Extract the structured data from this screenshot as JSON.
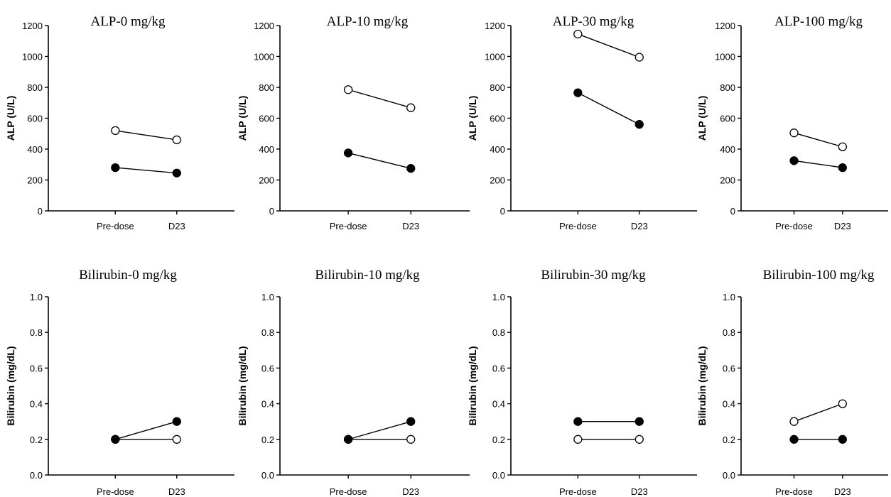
{
  "chart_data": [
    {
      "type": "line",
      "title": "ALP-0 mg/kg",
      "ylabel": "ALP (U/L)",
      "categories": [
        "Pre-dose",
        "D23"
      ],
      "ylim": [
        0,
        1200
      ],
      "yticks": [
        "0",
        "200",
        "400",
        "600",
        "800",
        "1000",
        "1200"
      ],
      "series": [
        {
          "values": [
            520,
            460
          ],
          "marker": "open"
        },
        {
          "values": [
            280,
            245
          ],
          "marker": "filled"
        }
      ]
    },
    {
      "type": "line",
      "title": "ALP-10 mg/kg",
      "ylabel": "ALP (U/L)",
      "categories": [
        "Pre-dose",
        "D23"
      ],
      "ylim": [
        0,
        1200
      ],
      "yticks": [
        "0",
        "200",
        "400",
        "600",
        "800",
        "1000",
        "1200"
      ],
      "series": [
        {
          "values": [
            785,
            668
          ],
          "marker": "open"
        },
        {
          "values": [
            375,
            275
          ],
          "marker": "filled"
        }
      ]
    },
    {
      "type": "line",
      "title": "ALP-30 mg/kg",
      "ylabel": "ALP (U/L)",
      "categories": [
        "Pre-dose",
        "D23"
      ],
      "ylim": [
        0,
        1200
      ],
      "yticks": [
        "0",
        "200",
        "400",
        "600",
        "800",
        "1000",
        "1200"
      ],
      "series": [
        {
          "values": [
            1145,
            995
          ],
          "marker": "open"
        },
        {
          "values": [
            765,
            560
          ],
          "marker": "filled"
        }
      ]
    },
    {
      "type": "line",
      "title": "ALP-100 mg/kg",
      "ylabel": "ALP (U/L)",
      "categories": [
        "Pre-dose",
        "D23"
      ],
      "ylim": [
        0,
        1200
      ],
      "yticks": [
        "0",
        "200",
        "400",
        "600",
        "800",
        "1000",
        "1200"
      ],
      "series": [
        {
          "values": [
            505,
            415
          ],
          "marker": "open"
        },
        {
          "values": [
            325,
            280
          ],
          "marker": "filled"
        }
      ]
    },
    {
      "type": "line",
      "title": "Bilirubin-0 mg/kg",
      "ylabel": "Bilirubin (mg/dL)",
      "categories": [
        "Pre-dose",
        "D23"
      ],
      "ylim": [
        0,
        1.0
      ],
      "yticks": [
        "0.0",
        "0.2",
        "0.4",
        "0.6",
        "0.8",
        "1.0"
      ],
      "series": [
        {
          "values": [
            0.2,
            0.2
          ],
          "marker": "open"
        },
        {
          "values": [
            0.2,
            0.3
          ],
          "marker": "filled"
        }
      ]
    },
    {
      "type": "line",
      "title": "Bilirubin-10 mg/kg",
      "ylabel": "Bilirubin (mg/dL)",
      "categories": [
        "Pre-dose",
        "D23"
      ],
      "ylim": [
        0,
        1.0
      ],
      "yticks": [
        "0.0",
        "0.2",
        "0.4",
        "0.6",
        "0.8",
        "1.0"
      ],
      "series": [
        {
          "values": [
            0.2,
            0.2
          ],
          "marker": "open"
        },
        {
          "values": [
            0.2,
            0.3
          ],
          "marker": "filled"
        }
      ]
    },
    {
      "type": "line",
      "title": "Bilirubin-30 mg/kg",
      "ylabel": "Bilirubin (mg/dL)",
      "categories": [
        "Pre-dose",
        "D23"
      ],
      "ylim": [
        0,
        1.0
      ],
      "yticks": [
        "0.0",
        "0.2",
        "0.4",
        "0.6",
        "0.8",
        "1.0"
      ],
      "series": [
        {
          "values": [
            0.2,
            0.2
          ],
          "marker": "open"
        },
        {
          "values": [
            0.3,
            0.3
          ],
          "marker": "filled"
        }
      ]
    },
    {
      "type": "line",
      "title": "Bilirubin-100 mg/kg",
      "ylabel": "Bilirubin (mg/dL)",
      "categories": [
        "Pre-dose",
        "D23"
      ],
      "ylim": [
        0,
        1.0
      ],
      "yticks": [
        "0.0",
        "0.2",
        "0.4",
        "0.6",
        "0.8",
        "1.0"
      ],
      "series": [
        {
          "values": [
            0.3,
            0.4
          ],
          "marker": "open"
        },
        {
          "values": [
            0.2,
            0.2
          ],
          "marker": "filled"
        }
      ]
    }
  ]
}
